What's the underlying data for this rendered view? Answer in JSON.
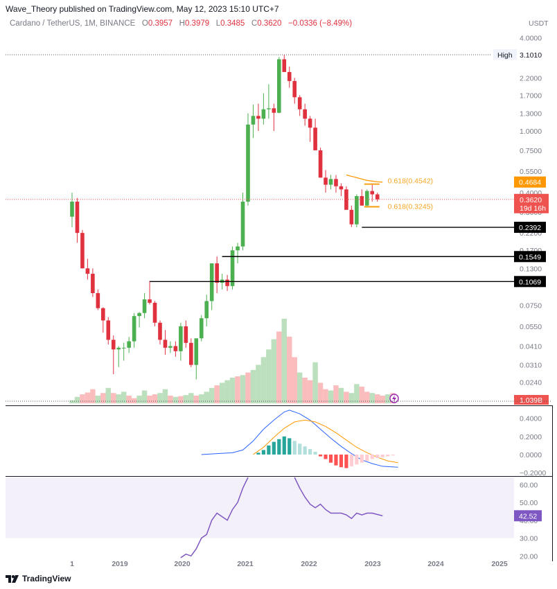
{
  "header": {
    "publisher": "Wave_Theory published on TradingView.com, May 12, 2023 15:10 UTC+7"
  },
  "legend": {
    "symbol": "Cardano / TetherUS, 1M, BINANCE",
    "o_label": "O",
    "o_value": "0.3957",
    "h_label": "H",
    "h_value": "0.3979",
    "l_label": "L",
    "l_value": "0.3485",
    "c_label": "C",
    "c_value": "0.3620",
    "change": "−0.0336 (−8.49%)"
  },
  "footer": {
    "brand": "TradingView"
  },
  "colors": {
    "up": "#26a69a",
    "down": "#ef5350",
    "candle_up": "#4caf50",
    "candle_down": "#e0313f",
    "macd": "#2962ff",
    "signal": "#ff9800",
    "rsi": "#7e57c2",
    "fib": "#f5a623"
  },
  "chart_data": [
    {
      "type": "candlestick",
      "pane": "price",
      "currency": "USDT",
      "scale": "log",
      "ylim": [
        0.017,
        4.4
      ],
      "y_ticks": [
        "4.0000",
        "2.2000",
        "1.7000",
        "1.3000",
        "1.0000",
        "0.7500",
        "0.5500",
        "0.4000",
        "0.3000",
        "0.2200",
        "0.1700",
        "0.1300",
        "0.0750",
        "0.0550",
        "0.0410",
        "0.0310",
        "0.0240"
      ],
      "x_ticks": [
        "1",
        "2019",
        "2020",
        "2021",
        "2022",
        "2023",
        "2024",
        "2025"
      ],
      "high_label": "High",
      "high_value": "3.1010",
      "last_price": "0.3620",
      "countdown": "19d 16h",
      "ma_value": "0.4684",
      "volume_label": "1.039B",
      "levels": [
        {
          "label": "0.2392",
          "price": 0.2392
        },
        {
          "label": "0.1549",
          "price": 0.1549
        },
        {
          "label": "0.1069",
          "price": 0.1069
        }
      ],
      "fib_levels": [
        {
          "label": "0.618(0.4542)",
          "price": 0.4542
        },
        {
          "label": "0.618(0.3245)",
          "price": 0.3245
        }
      ]
    },
    {
      "type": "macd",
      "pane": "macd",
      "y_ticks": [
        "0.4000",
        "0.2000",
        "0.0000",
        "−0.2000"
      ],
      "ylim": [
        -0.23,
        0.52
      ]
    },
    {
      "type": "line",
      "pane": "rsi",
      "y_ticks": [
        "60.00",
        "50.00",
        "40.00",
        "30.00",
        "20.00"
      ],
      "ylim": [
        17,
        64
      ],
      "band": [
        30,
        70
      ],
      "last_value": "42.52"
    }
  ]
}
